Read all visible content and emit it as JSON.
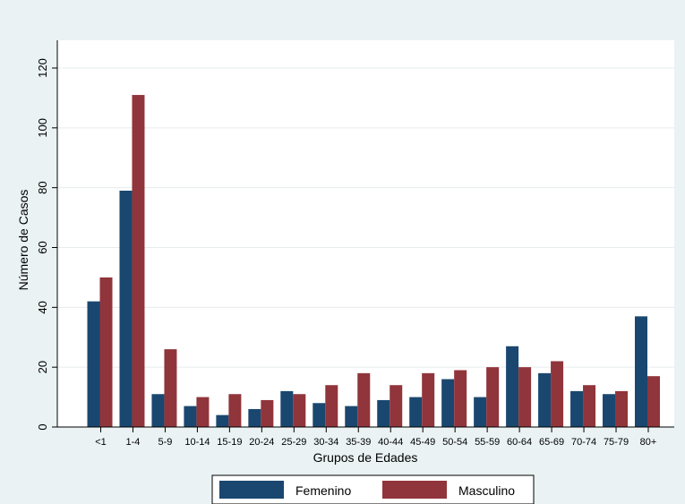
{
  "chart_data": {
    "type": "bar",
    "xlabel": "Grupos de Edades",
    "ylabel": "Número de Casos",
    "ylim": [
      0,
      120
    ],
    "yticks": [
      0,
      20,
      40,
      60,
      80,
      100,
      120
    ],
    "grid": true,
    "legend_position": "bottom",
    "categories": [
      "<1",
      "1-4",
      "5-9",
      "10-14",
      "15-19",
      "20-24",
      "25-29",
      "30-34",
      "35-39",
      "40-44",
      "45-49",
      "50-54",
      "55-59",
      "60-64",
      "65-69",
      "70-74",
      "75-79",
      "80+"
    ],
    "series": [
      {
        "name": "Femenino",
        "color": "#1a476f",
        "values": [
          42,
          79,
          11,
          7,
          4,
          6,
          12,
          8,
          7,
          9,
          10,
          16,
          10,
          27,
          18,
          12,
          11,
          37
        ]
      },
      {
        "name": "Masculino",
        "color": "#90353b",
        "values": [
          50,
          111,
          26,
          10,
          11,
          9,
          11,
          14,
          18,
          14,
          18,
          19,
          20,
          20,
          22,
          14,
          12,
          17
        ]
      }
    ]
  }
}
